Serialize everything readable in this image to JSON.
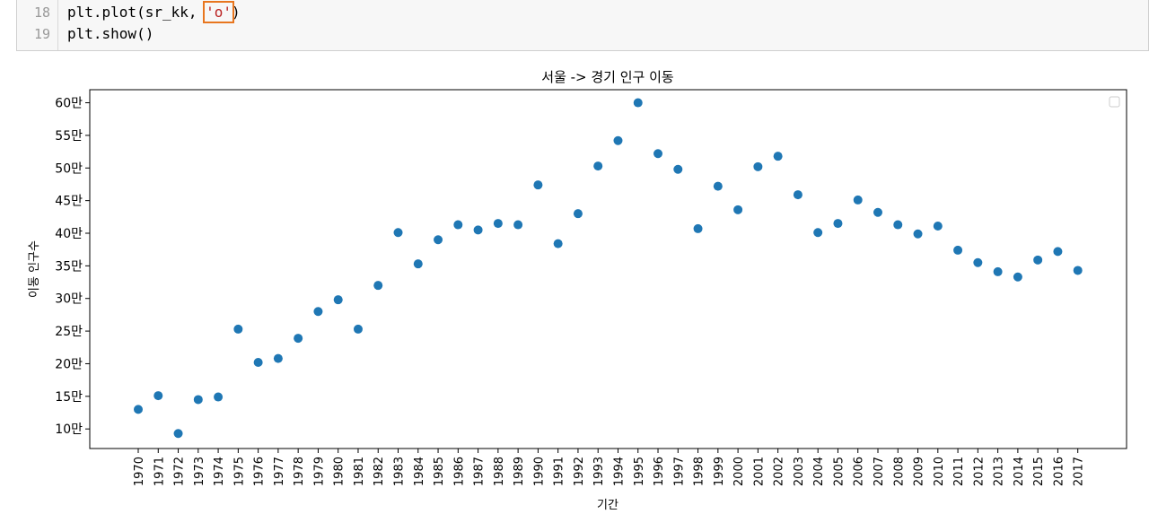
{
  "code": {
    "lines": [
      {
        "num": "18",
        "before": "plt.plot(sr_kk, ",
        "string": "'o'",
        "after": ")"
      },
      {
        "num": "19",
        "before": "plt.show()",
        "string": "",
        "after": ""
      }
    ]
  },
  "colors": {
    "marker": "#1f77b4",
    "highlight": "#e8761f",
    "string": "#ba2121"
  },
  "chart_data": {
    "type": "scatter",
    "title": "서울 -> 경기 인구 이동",
    "xlabel": "기간",
    "ylabel": "이동 인구수",
    "legend": "top-right (empty)",
    "grid": false,
    "ylim": [
      70000,
      620000
    ],
    "yticks": [
      100000,
      150000,
      200000,
      250000,
      300000,
      350000,
      400000,
      450000,
      500000,
      550000,
      600000
    ],
    "ytick_labels": [
      "10만",
      "15만",
      "20만",
      "25만",
      "30만",
      "35만",
      "40만",
      "45만",
      "50만",
      "55만",
      "60만"
    ],
    "x": [
      "1970",
      "1971",
      "1972",
      "1973",
      "1974",
      "1975",
      "1976",
      "1977",
      "1978",
      "1979",
      "1980",
      "1981",
      "1982",
      "1983",
      "1984",
      "1985",
      "1986",
      "1987",
      "1988",
      "1989",
      "1990",
      "1991",
      "1992",
      "1993",
      "1994",
      "1995",
      "1996",
      "1997",
      "1998",
      "1999",
      "2000",
      "2001",
      "2002",
      "2003",
      "2004",
      "2005",
      "2006",
      "2007",
      "2008",
      "2009",
      "2010",
      "2011",
      "2012",
      "2013",
      "2014",
      "2015",
      "2016",
      "2017"
    ],
    "y": [
      130000,
      151000,
      93000,
      145000,
      149000,
      253000,
      202000,
      208000,
      239000,
      280000,
      298000,
      253000,
      320000,
      401000,
      353000,
      390000,
      413000,
      405000,
      415000,
      413000,
      474000,
      384000,
      430000,
      503000,
      542000,
      600000,
      522000,
      498000,
      407000,
      472000,
      436000,
      502000,
      518000,
      459000,
      401000,
      415000,
      451000,
      432000,
      413000,
      399000,
      411000,
      374000,
      355000,
      341000,
      333000,
      359000,
      372000,
      343000
    ]
  }
}
